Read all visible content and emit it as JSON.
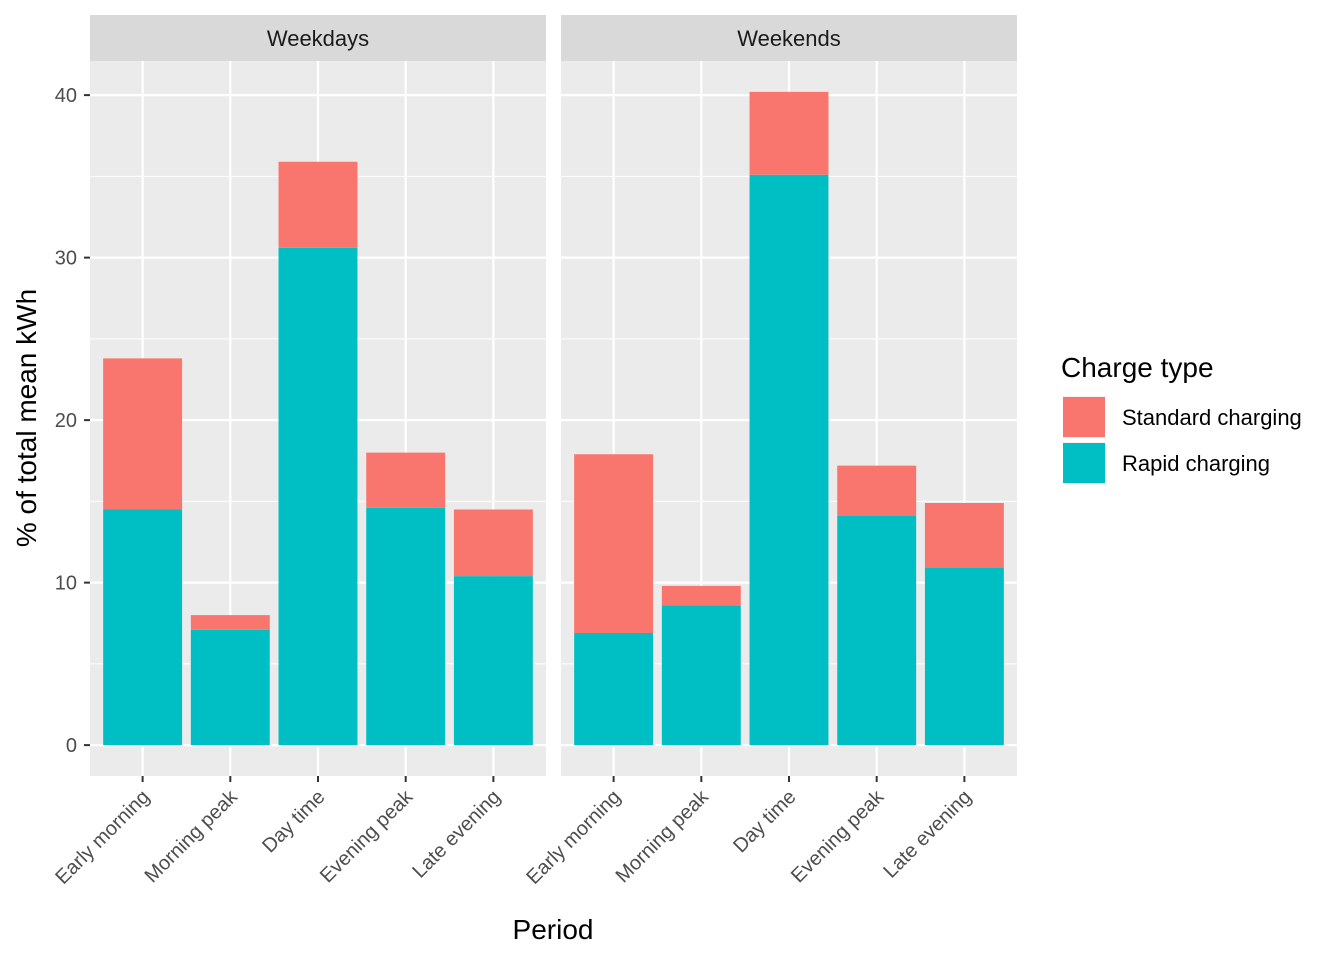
{
  "chart_data": {
    "type": "bar",
    "stacked": true,
    "ylabel": "% of total mean kWh",
    "xlabel": "Period",
    "ylim": [
      -1.9,
      42.1
    ],
    "yticks": [
      0,
      10,
      20,
      30,
      40
    ],
    "grid": true,
    "legend_position": "right",
    "legend_title": "Charge type",
    "legend": [
      {
        "name": "Standard charging",
        "color": "#F8766D"
      },
      {
        "name": "Rapid charging",
        "color": "#00BFC4"
      }
    ],
    "categories": [
      "Early morning",
      "Morning peak",
      "Day time",
      "Evening peak",
      "Late evening"
    ],
    "facets": [
      {
        "label": "Weekdays",
        "series": [
          {
            "name": "Rapid charging",
            "values": [
              14.5,
              7.1,
              30.6,
              14.6,
              10.4
            ]
          },
          {
            "name": "Standard charging",
            "values": [
              9.3,
              0.9,
              5.3,
              3.4,
              4.1
            ]
          }
        ]
      },
      {
        "label": "Weekends",
        "series": [
          {
            "name": "Rapid charging",
            "values": [
              6.9,
              8.6,
              35.1,
              14.1,
              10.9
            ]
          },
          {
            "name": "Standard charging",
            "values": [
              11.0,
              1.2,
              5.1,
              3.1,
              4.0
            ]
          }
        ]
      }
    ]
  }
}
